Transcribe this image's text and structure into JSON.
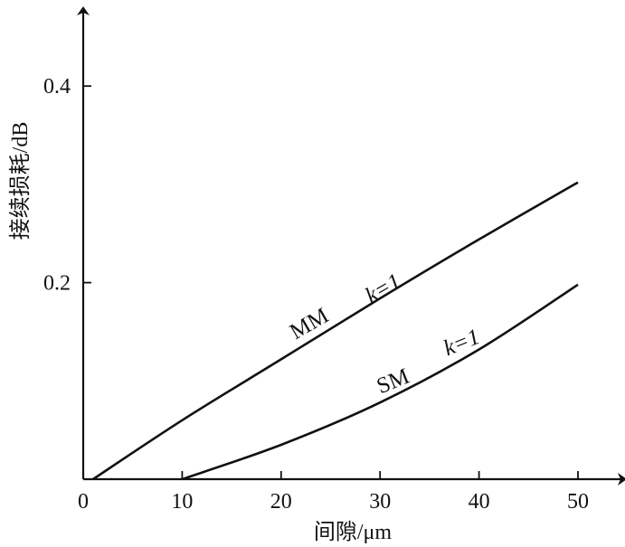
{
  "chart_data": {
    "type": "line",
    "title": "",
    "xlabel": "间隙/μm",
    "ylabel": "接续损耗/dB",
    "xlim": [
      0,
      55
    ],
    "ylim": [
      0,
      0.47
    ],
    "x_ticks": [
      0,
      10,
      20,
      30,
      40,
      50
    ],
    "x_tick_labels": [
      "0",
      "10",
      "20",
      "30",
      "40",
      "50"
    ],
    "y_ticks": [
      0.2,
      0.4
    ],
    "y_tick_labels": [
      "0.2",
      "0.4"
    ],
    "grid": false,
    "series": [
      {
        "name": "MM  k=1",
        "label_main": "MM",
        "label_k": "k=1",
        "x": [
          1,
          10,
          20,
          30,
          40,
          50
        ],
        "y": [
          0,
          0.06,
          0.122,
          0.184,
          0.244,
          0.302
        ]
      },
      {
        "name": "SM  k=1",
        "label_main": "SM",
        "label_k": "k=1",
        "x": [
          10,
          20,
          30,
          40,
          50
        ],
        "y": [
          0,
          0.035,
          0.078,
          0.132,
          0.198
        ]
      }
    ]
  }
}
